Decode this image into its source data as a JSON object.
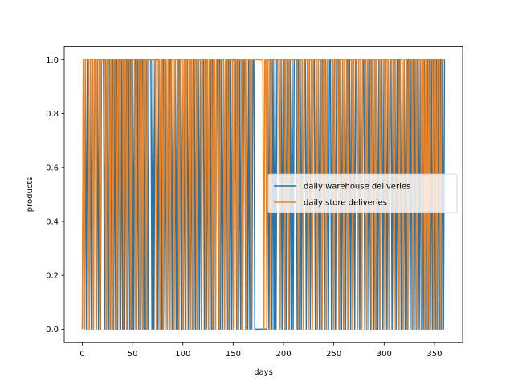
{
  "chart_data": {
    "type": "line",
    "title": "",
    "xlabel": "days",
    "ylabel": "products",
    "xlim": [
      -18,
      378
    ],
    "ylim": [
      -0.05,
      1.05
    ],
    "xticks": [
      0,
      50,
      100,
      150,
      200,
      250,
      300,
      350
    ],
    "yticks": [
      0.0,
      0.2,
      0.4,
      0.6,
      0.8,
      1.0
    ],
    "xtick_labels": [
      "0",
      "50",
      "100",
      "150",
      "200",
      "250",
      "300",
      "350"
    ],
    "ytick_labels": [
      "0.0",
      "0.2",
      "0.4",
      "0.6",
      "0.8",
      "1.0"
    ],
    "grid": false,
    "legend_position": "center-right",
    "x_range": [
      0,
      360
    ],
    "series": [
      {
        "name": "daily warehouse deliveries",
        "color": "#1f77b4",
        "values_note_free": true,
        "values": [
          0,
          1,
          0,
          1,
          0,
          1,
          1,
          0,
          1,
          0,
          1,
          0,
          1,
          1,
          0,
          1,
          0,
          1,
          0,
          1,
          1,
          1,
          0,
          1,
          0,
          1,
          0,
          1,
          0,
          1,
          1,
          0,
          1,
          0,
          1,
          0,
          1,
          1,
          0,
          1,
          0,
          1,
          0,
          1,
          1,
          0,
          1,
          0,
          1,
          0,
          1,
          0,
          1,
          1,
          0,
          1,
          0,
          1,
          0,
          1,
          1,
          0,
          1,
          0,
          1,
          0,
          1,
          1,
          1,
          0,
          1,
          0,
          1,
          1,
          1,
          0,
          1,
          0,
          1,
          0,
          1,
          1,
          0,
          1,
          0,
          1,
          0,
          1,
          1,
          0,
          1,
          0,
          1,
          0,
          1,
          0,
          1,
          1,
          0,
          1,
          0,
          1,
          0,
          1,
          1,
          0,
          1,
          0,
          1,
          0,
          1,
          1,
          0,
          1,
          0,
          1,
          0,
          1,
          0,
          1,
          1,
          0,
          1,
          0,
          1,
          0,
          1,
          1,
          0,
          1,
          0,
          1,
          0,
          1,
          1,
          0,
          1,
          0,
          1,
          0,
          1,
          0,
          1,
          1,
          0,
          1,
          0,
          1,
          0,
          1,
          1,
          1,
          1,
          0,
          1,
          0,
          1,
          0,
          1,
          0,
          1,
          1,
          0,
          1,
          0,
          1,
          0,
          1,
          0,
          1,
          1,
          0,
          0,
          0,
          0,
          0,
          0,
          0,
          0,
          0,
          0,
          0,
          0,
          0,
          1,
          0,
          1,
          1,
          0,
          1,
          0,
          1,
          0,
          1,
          1,
          1,
          0,
          1,
          0,
          1,
          0,
          1,
          0,
          1,
          1,
          0,
          1,
          0,
          1,
          0,
          1,
          1,
          1,
          0,
          1,
          0,
          1,
          0,
          1,
          0,
          1,
          1,
          0,
          1,
          0,
          1,
          0,
          1,
          0,
          1,
          1,
          0,
          1,
          0,
          1,
          0,
          1,
          0,
          1,
          1,
          0,
          1,
          0,
          1,
          0,
          1,
          1,
          0,
          1,
          0,
          1,
          0,
          1,
          1,
          1,
          0,
          1,
          0,
          1,
          0,
          1,
          0,
          1,
          1,
          0,
          1,
          0,
          1,
          0,
          1,
          0,
          1,
          1,
          0,
          1,
          0,
          1,
          0,
          1,
          1,
          0,
          1,
          0,
          1,
          0,
          1,
          0,
          1,
          1,
          0,
          1,
          0,
          1,
          0,
          1,
          0,
          1,
          1,
          0,
          1,
          0,
          1,
          0,
          1,
          0,
          1,
          1,
          0,
          1,
          0,
          1,
          0,
          1,
          0,
          1,
          1,
          0,
          1,
          0,
          1,
          0,
          1,
          0,
          1,
          1,
          0,
          1,
          0,
          1,
          0,
          1,
          0,
          1,
          1,
          0,
          1,
          0,
          1,
          0,
          1,
          0,
          0,
          1,
          0,
          1,
          0,
          1,
          0,
          1,
          1,
          0,
          1,
          0,
          1,
          0,
          1,
          0,
          1,
          0,
          1
        ]
      },
      {
        "name": "daily store deliveries",
        "color": "#ff7f0e",
        "values": [
          0,
          1,
          0,
          1,
          1,
          1,
          1,
          0,
          1,
          1,
          1,
          0,
          1,
          1,
          0,
          1,
          1,
          1,
          0,
          1,
          1,
          1,
          1,
          1,
          0,
          1,
          1,
          1,
          0,
          1,
          1,
          0,
          1,
          1,
          1,
          0,
          1,
          1,
          0,
          1,
          1,
          1,
          0,
          1,
          1,
          0,
          1,
          1,
          1,
          0,
          1,
          1,
          1,
          1,
          0,
          1,
          1,
          1,
          0,
          1,
          1,
          0,
          1,
          1,
          1,
          0,
          1,
          1,
          1,
          1,
          1,
          1,
          1,
          1,
          1,
          0,
          1,
          1,
          1,
          0,
          1,
          1,
          0,
          1,
          1,
          1,
          0,
          1,
          1,
          0,
          1,
          1,
          1,
          0,
          1,
          1,
          1,
          1,
          0,
          1,
          1,
          1,
          0,
          1,
          1,
          0,
          1,
          1,
          1,
          0,
          1,
          1,
          0,
          1,
          1,
          1,
          0,
          1,
          1,
          1,
          1,
          0,
          1,
          1,
          1,
          0,
          1,
          1,
          0,
          1,
          1,
          1,
          0,
          1,
          1,
          0,
          1,
          1,
          1,
          0,
          1,
          1,
          1,
          1,
          0,
          1,
          1,
          1,
          0,
          1,
          1,
          1,
          1,
          0,
          1,
          1,
          1,
          0,
          1,
          1,
          1,
          1,
          0,
          1,
          1,
          1,
          0,
          1,
          1,
          1,
          1,
          0,
          1,
          1,
          1,
          1,
          1,
          1,
          1,
          1,
          1,
          1,
          1,
          1,
          0,
          1,
          1,
          0,
          1,
          1,
          1,
          0,
          1,
          1,
          1,
          1,
          1,
          1,
          1,
          1,
          0,
          1,
          1,
          1,
          1,
          0,
          1,
          1,
          1,
          0,
          1,
          1,
          1,
          1,
          1,
          1,
          1,
          1,
          1,
          0,
          1,
          1,
          1,
          1,
          0,
          1,
          1,
          1,
          1,
          0,
          1,
          1,
          1,
          0,
          1,
          1,
          1,
          1,
          0,
          1,
          1,
          1,
          1,
          0,
          1,
          1,
          1,
          0,
          1,
          1,
          1,
          1,
          1,
          1,
          1,
          0,
          1,
          1,
          1,
          1,
          0,
          1,
          1,
          1,
          1,
          0,
          1,
          1,
          1,
          0,
          1,
          1,
          1,
          1,
          0,
          1,
          1,
          1,
          1,
          0,
          1,
          1,
          1,
          0,
          1,
          1,
          1,
          1,
          0,
          1,
          1,
          1,
          1,
          0,
          1,
          1,
          1,
          0,
          1,
          1,
          1,
          1,
          0,
          1,
          1,
          1,
          1,
          0,
          1,
          1,
          1,
          0,
          1,
          1,
          1,
          1,
          0,
          1,
          1,
          1,
          1,
          0,
          1,
          1,
          1,
          0,
          1,
          1,
          1,
          1,
          0,
          1,
          1,
          1,
          1,
          0,
          1,
          1,
          1,
          0,
          1,
          1,
          1,
          1,
          0,
          1,
          1,
          0,
          1,
          1,
          0,
          1,
          0,
          1,
          1,
          1,
          0,
          1,
          1,
          0,
          1,
          1,
          1,
          0,
          1,
          1,
          1,
          1
        ]
      }
    ]
  }
}
